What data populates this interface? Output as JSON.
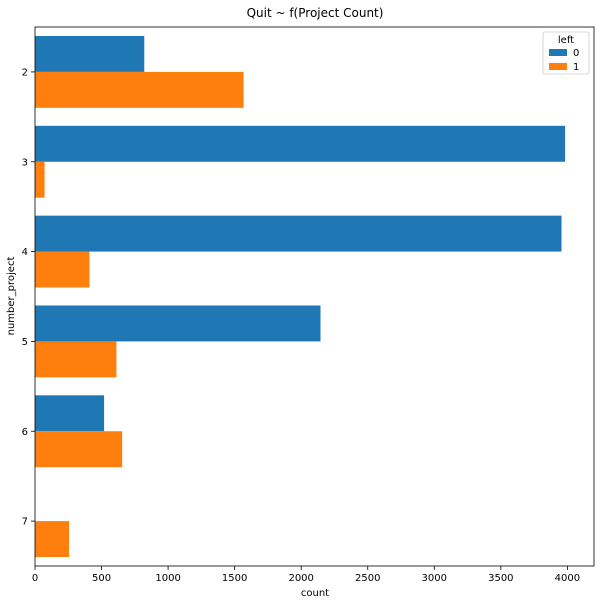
{
  "chart_data": {
    "type": "bar",
    "orientation": "horizontal",
    "title": "Quit ~ f(Project Count)",
    "xlabel": "count",
    "ylabel": "number_project",
    "categories": [
      "2",
      "3",
      "4",
      "5",
      "6",
      "7"
    ],
    "x_ticks": [
      "0",
      "500",
      "1000",
      "1500",
      "2000",
      "2500",
      "3000",
      "3500",
      "4000"
    ],
    "xlim": [
      0,
      4200
    ],
    "grid": false,
    "legend": {
      "title": "left",
      "placement": "top-right",
      "entries": [
        "0",
        "1"
      ]
    },
    "series": [
      {
        "name": "0",
        "color": "#1f77b4",
        "values": [
          821,
          3983,
          3956,
          2145,
          519,
          0
        ]
      },
      {
        "name": "1",
        "color": "#ff7f0e",
        "values": [
          1567,
          72,
          409,
          612,
          655,
          256
        ]
      }
    ]
  }
}
